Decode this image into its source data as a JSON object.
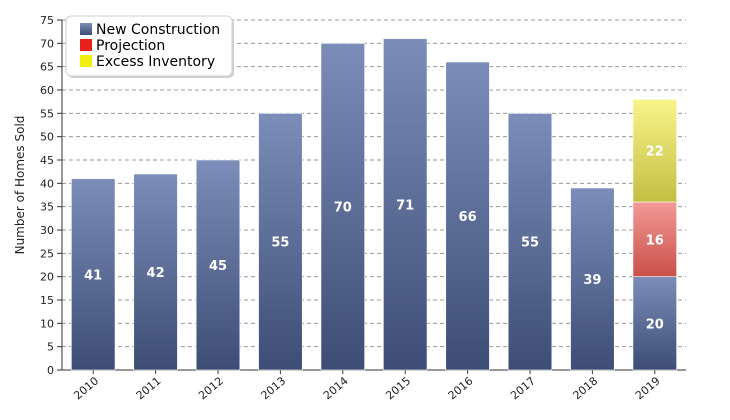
{
  "chart_data": {
    "type": "bar",
    "stacked": true,
    "ylabel": "Number of Homes Sold",
    "ylim": [
      0,
      75
    ],
    "ytick_step": 5,
    "grid": true,
    "legend_position": "top-left",
    "categories": [
      "2010",
      "2011",
      "2012",
      "2013",
      "2014",
      "2015",
      "2016",
      "2017",
      "2018",
      "2019"
    ],
    "series": [
      {
        "name": "New Construction",
        "color": "#5a6d99",
        "values": [
          41,
          42,
          45,
          55,
          70,
          71,
          66,
          55,
          39,
          20
        ]
      },
      {
        "name": "Projection",
        "color": "#e8201a",
        "values": [
          0,
          0,
          0,
          0,
          0,
          0,
          0,
          0,
          0,
          16
        ]
      },
      {
        "name": "Excess Inventory",
        "color": "#f0f010",
        "values": [
          0,
          0,
          0,
          0,
          0,
          0,
          0,
          0,
          0,
          22
        ]
      }
    ]
  }
}
